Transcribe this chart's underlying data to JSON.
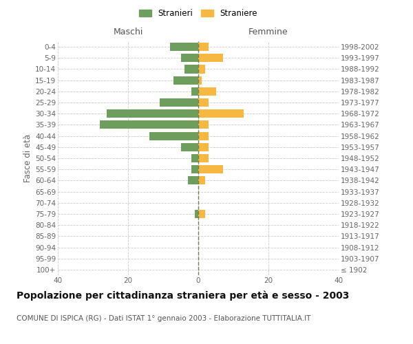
{
  "age_groups": [
    "100+",
    "95-99",
    "90-94",
    "85-89",
    "80-84",
    "75-79",
    "70-74",
    "65-69",
    "60-64",
    "55-59",
    "50-54",
    "45-49",
    "40-44",
    "35-39",
    "30-34",
    "25-29",
    "20-24",
    "15-19",
    "10-14",
    "5-9",
    "0-4"
  ],
  "birth_years": [
    "≤ 1902",
    "1903-1907",
    "1908-1912",
    "1913-1917",
    "1918-1922",
    "1923-1927",
    "1928-1932",
    "1933-1937",
    "1938-1942",
    "1943-1947",
    "1948-1952",
    "1953-1957",
    "1958-1962",
    "1963-1967",
    "1968-1972",
    "1973-1977",
    "1978-1982",
    "1983-1987",
    "1988-1992",
    "1993-1997",
    "1998-2002"
  ],
  "maschi": [
    0,
    0,
    0,
    0,
    0,
    1,
    0,
    0,
    3,
    2,
    2,
    5,
    14,
    28,
    26,
    11,
    2,
    7,
    4,
    5,
    8
  ],
  "femmine": [
    0,
    0,
    0,
    0,
    0,
    2,
    0,
    0,
    2,
    7,
    3,
    3,
    3,
    3,
    13,
    3,
    5,
    1,
    2,
    7,
    3
  ],
  "maschi_color": "#6e9e5e",
  "femmine_color": "#f5b942",
  "center_line_color": "#7a7a50",
  "grid_color": "#cccccc",
  "background_color": "#ffffff",
  "title": "Popolazione per cittadinanza straniera per età e sesso - 2003",
  "subtitle": "COMUNE DI ISPICA (RG) - Dati ISTAT 1° gennaio 2003 - Elaborazione TUTTITALIA.IT",
  "xlabel_left": "Maschi",
  "xlabel_right": "Femmine",
  "ylabel_left": "Fasce di età",
  "legend_maschi": "Stranieri",
  "legend_femmine": "Straniere",
  "xlim": 40,
  "bar_height": 0.75,
  "title_fontsize": 10,
  "subtitle_fontsize": 7.5,
  "tick_fontsize": 7.5,
  "label_fontsize": 8.5,
  "header_fontsize": 9
}
